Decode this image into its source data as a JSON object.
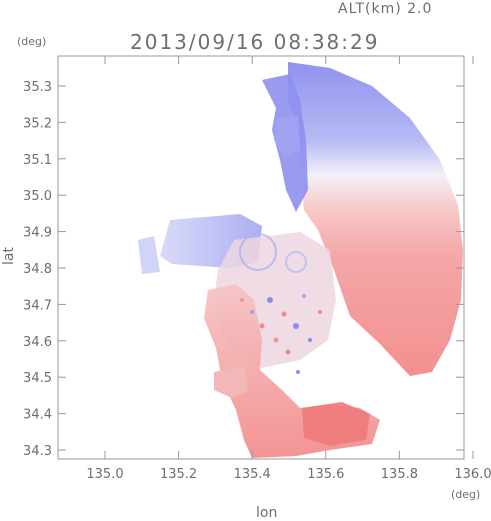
{
  "header": {
    "alt_label": "ALT(km) 2.0",
    "datetime": "2013/09/16 08:38:29"
  },
  "axes": {
    "y_unit": "(deg)",
    "x_unit": "(deg)",
    "y_label": "lat",
    "x_label": "lon",
    "x_ticks": [
      "135.0",
      "135.2",
      "135.4",
      "135.6",
      "135.8",
      "136.0"
    ],
    "y_ticks": [
      "35.3",
      "35.2",
      "35.1",
      "35.0",
      "34.9",
      "34.8",
      "34.7",
      "34.6",
      "34.5",
      "34.4",
      "34.3"
    ]
  },
  "colors": {
    "approaching": "#7c7cf0",
    "receding": "#f27a7a",
    "frame": "#9a9a9a"
  }
}
